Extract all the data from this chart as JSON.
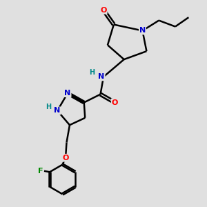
{
  "bg_color": "#e0e0e0",
  "bond_color": "#000000",
  "bond_width": 1.8,
  "N_color": "#0000cc",
  "O_color": "#ff0000",
  "F_color": "#008800",
  "H_color": "#008888",
  "figsize": [
    3.0,
    3.0
  ],
  "dpi": 100,
  "xlim": [
    0,
    10
  ],
  "ylim": [
    0,
    10
  ]
}
